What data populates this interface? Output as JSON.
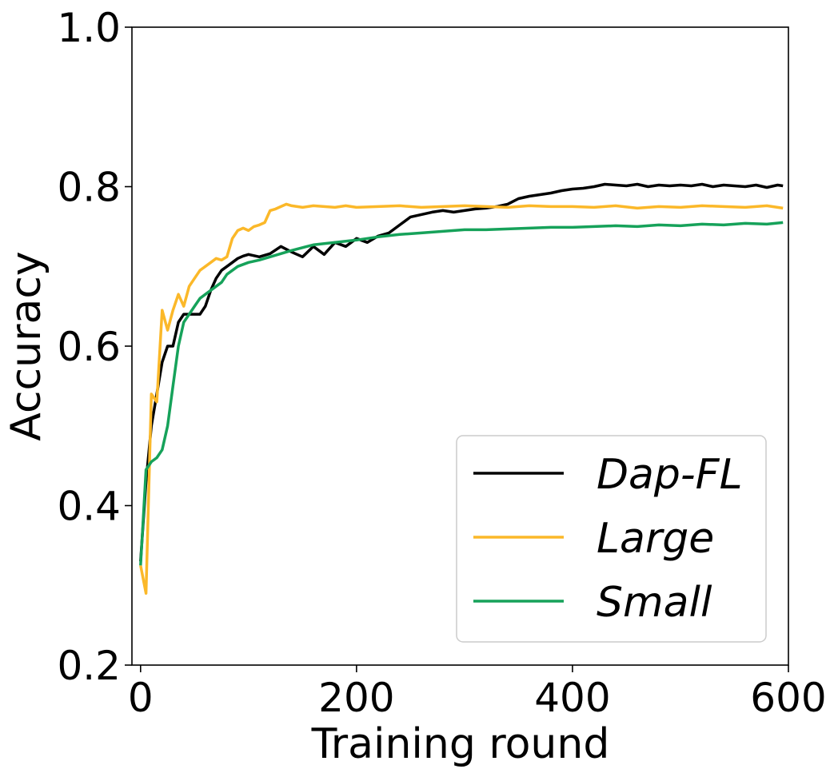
{
  "chart_data": {
    "type": "line",
    "title": "",
    "xlabel": "Training round",
    "ylabel": "Accuracy",
    "xlim": [
      -8,
      600
    ],
    "ylim": [
      0.2,
      1.0
    ],
    "xticks": [
      0,
      200,
      400,
      600
    ],
    "xtick_labels": [
      "0",
      "200",
      "400",
      "600"
    ],
    "yticks": [
      0.2,
      0.4,
      0.6,
      0.8,
      1.0
    ],
    "ytick_labels": [
      "0.2",
      "0.4",
      "0.6",
      "0.8",
      "1.0"
    ],
    "grid": false,
    "legend_position": "bottom-right",
    "series": [
      {
        "name": "Dap-FL",
        "color": "#000000",
        "x": [
          0,
          5,
          10,
          15,
          20,
          25,
          30,
          35,
          40,
          45,
          50,
          55,
          60,
          65,
          70,
          75,
          80,
          85,
          90,
          95,
          100,
          110,
          120,
          130,
          140,
          150,
          160,
          170,
          180,
          190,
          200,
          210,
          220,
          230,
          240,
          250,
          260,
          270,
          280,
          290,
          300,
          310,
          320,
          330,
          340,
          350,
          360,
          370,
          380,
          390,
          400,
          410,
          420,
          430,
          440,
          450,
          460,
          470,
          480,
          490,
          500,
          510,
          520,
          530,
          540,
          550,
          560,
          570,
          580,
          590,
          595
        ],
        "values": [
          0.33,
          0.43,
          0.5,
          0.54,
          0.58,
          0.6,
          0.6,
          0.63,
          0.64,
          0.64,
          0.64,
          0.64,
          0.65,
          0.67,
          0.685,
          0.695,
          0.7,
          0.705,
          0.71,
          0.713,
          0.715,
          0.712,
          0.716,
          0.725,
          0.718,
          0.712,
          0.725,
          0.715,
          0.73,
          0.725,
          0.735,
          0.73,
          0.738,
          0.742,
          0.752,
          0.762,
          0.765,
          0.768,
          0.77,
          0.768,
          0.77,
          0.772,
          0.773,
          0.775,
          0.778,
          0.785,
          0.788,
          0.79,
          0.792,
          0.795,
          0.797,
          0.798,
          0.8,
          0.803,
          0.802,
          0.801,
          0.803,
          0.8,
          0.802,
          0.801,
          0.802,
          0.801,
          0.803,
          0.8,
          0.802,
          0.801,
          0.8,
          0.802,
          0.799,
          0.802,
          0.801
        ]
      },
      {
        "name": "Large",
        "color": "#FBB829",
        "x": [
          0,
          5,
          10,
          15,
          20,
          25,
          30,
          35,
          40,
          45,
          50,
          55,
          60,
          65,
          70,
          75,
          80,
          85,
          90,
          95,
          100,
          105,
          110,
          115,
          120,
          125,
          130,
          135,
          140,
          145,
          150,
          160,
          170,
          180,
          190,
          200,
          220,
          240,
          260,
          280,
          300,
          320,
          340,
          360,
          380,
          400,
          420,
          440,
          460,
          480,
          500,
          520,
          540,
          560,
          580,
          595
        ],
        "values": [
          0.325,
          0.29,
          0.54,
          0.53,
          0.645,
          0.62,
          0.645,
          0.665,
          0.65,
          0.675,
          0.685,
          0.695,
          0.7,
          0.705,
          0.71,
          0.708,
          0.712,
          0.735,
          0.745,
          0.748,
          0.745,
          0.75,
          0.752,
          0.755,
          0.77,
          0.772,
          0.775,
          0.778,
          0.776,
          0.775,
          0.774,
          0.776,
          0.775,
          0.774,
          0.776,
          0.774,
          0.775,
          0.776,
          0.774,
          0.775,
          0.776,
          0.775,
          0.774,
          0.776,
          0.775,
          0.775,
          0.774,
          0.776,
          0.773,
          0.775,
          0.774,
          0.776,
          0.775,
          0.774,
          0.776,
          0.773
        ]
      },
      {
        "name": "Small",
        "color": "#16A25A",
        "x": [
          0,
          5,
          10,
          15,
          20,
          25,
          30,
          35,
          40,
          45,
          50,
          55,
          60,
          65,
          70,
          75,
          80,
          90,
          100,
          110,
          120,
          140,
          160,
          180,
          200,
          220,
          240,
          260,
          280,
          300,
          320,
          340,
          360,
          380,
          400,
          420,
          440,
          460,
          480,
          500,
          520,
          540,
          560,
          580,
          595
        ],
        "values": [
          0.325,
          0.445,
          0.455,
          0.46,
          0.47,
          0.5,
          0.55,
          0.6,
          0.63,
          0.64,
          0.65,
          0.66,
          0.665,
          0.67,
          0.675,
          0.68,
          0.69,
          0.7,
          0.705,
          0.708,
          0.712,
          0.72,
          0.727,
          0.73,
          0.733,
          0.737,
          0.74,
          0.742,
          0.744,
          0.746,
          0.746,
          0.747,
          0.748,
          0.749,
          0.749,
          0.75,
          0.751,
          0.75,
          0.752,
          0.751,
          0.753,
          0.752,
          0.754,
          0.753,
          0.755
        ]
      }
    ]
  }
}
